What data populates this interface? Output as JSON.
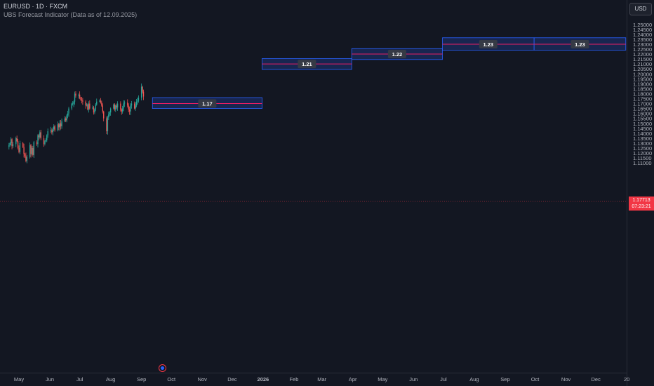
{
  "header": {
    "title": "EURUSD · 1D · FXCM",
    "indicator": "UBS Forecast Indicator (Data as of 12.09.2025)"
  },
  "currency_button": "USD",
  "last_price": {
    "value": "1.17713",
    "countdown": "07:23:21",
    "color": "#f23645"
  },
  "colors": {
    "background": "#131722",
    "up": "#26a69a",
    "down": "#ef5350",
    "box_fill": "#1e3a8a",
    "box_border": "#2962ff",
    "forecast_line": "#e91e63",
    "label_bg": "#363a45",
    "axis_text": "#b2b5be"
  },
  "chart_data": {
    "type": "candlestick",
    "symbol": "EURUSD",
    "timeframe": "1D",
    "y_ticks": [
      1.11,
      1.115,
      1.12,
      1.125,
      1.13,
      1.135,
      1.14,
      1.145,
      1.15,
      1.155,
      1.16,
      1.165,
      1.17,
      1.175,
      1.18,
      1.185,
      1.19,
      1.195,
      1.2,
      1.205,
      1.21,
      1.215,
      1.22,
      1.225,
      1.23,
      1.235,
      1.24,
      1.245,
      1.25
    ],
    "y_tick_labels": [
      "1.11000",
      "1.11500",
      "1.12000",
      "1.12500",
      "1.13000",
      "1.13500",
      "1.14000",
      "1.14500",
      "1.15000",
      "1.15500",
      "1.16000",
      "1.16500",
      "1.17000",
      "1.17500",
      "1.18000",
      "1.18500",
      "1.19000",
      "1.19500",
      "1.20000",
      "1.20500",
      "1.21000",
      "1.21500",
      "1.22000",
      "1.22500",
      "1.23000",
      "1.23500",
      "1.24000",
      "1.24500",
      "1.25000"
    ],
    "x_labels": [
      {
        "date": "2025-05-01",
        "label": "May"
      },
      {
        "date": "2025-06-01",
        "label": "Jun"
      },
      {
        "date": "2025-07-01",
        "label": "Jul"
      },
      {
        "date": "2025-08-01",
        "label": "Aug"
      },
      {
        "date": "2025-09-01",
        "label": "Sep"
      },
      {
        "date": "2025-10-01",
        "label": "Oct"
      },
      {
        "date": "2025-11-01",
        "label": "Nov"
      },
      {
        "date": "2025-12-01",
        "label": "Dec"
      },
      {
        "date": "2026-01-01",
        "label": "2026"
      },
      {
        "date": "2026-02-01",
        "label": "Feb"
      },
      {
        "date": "2026-03-01",
        "label": "Mar"
      },
      {
        "date": "2026-04-01",
        "label": "Apr"
      },
      {
        "date": "2026-05-01",
        "label": "May"
      },
      {
        "date": "2026-06-01",
        "label": "Jun"
      },
      {
        "date": "2026-07-01",
        "label": "Jul"
      },
      {
        "date": "2026-08-01",
        "label": "Aug"
      },
      {
        "date": "2026-09-01",
        "label": "Sep"
      },
      {
        "date": "2026-10-01",
        "label": "Oct"
      },
      {
        "date": "2026-11-01",
        "label": "Nov"
      },
      {
        "date": "2026-12-01",
        "label": "Dec"
      },
      {
        "date": "2027-01-01",
        "label": "20"
      }
    ],
    "first_candle": "2025-04-21",
    "last_price": 1.17713,
    "close_path": [
      1.128,
      1.13,
      1.134,
      1.127,
      1.129,
      1.135,
      1.132,
      1.125,
      1.121,
      1.13,
      1.126,
      1.119,
      1.117,
      1.112,
      1.116,
      1.128,
      1.119,
      1.125,
      1.118,
      1.131,
      1.129,
      1.138,
      1.136,
      1.141,
      1.135,
      1.129,
      1.132,
      1.133,
      1.138,
      1.142,
      1.143,
      1.141,
      1.144,
      1.147,
      1.143,
      1.149,
      1.146,
      1.15,
      1.147,
      1.152,
      1.155,
      1.153,
      1.158,
      1.16,
      1.165,
      1.17,
      1.17,
      1.172,
      1.18,
      1.178,
      1.179,
      1.176,
      1.174,
      1.173,
      1.172,
      1.168,
      1.169,
      1.164,
      1.17,
      1.165,
      1.166,
      1.161,
      1.164,
      1.169,
      1.172,
      1.173,
      1.171,
      1.168,
      1.162,
      1.155,
      1.142,
      1.156,
      1.159,
      1.161,
      1.165,
      1.169,
      1.164,
      1.168,
      1.166,
      1.17,
      1.164,
      1.162,
      1.165,
      1.17,
      1.171,
      1.168,
      1.164,
      1.162,
      1.168,
      1.17,
      1.165,
      1.168,
      1.172,
      1.173,
      1.176,
      1.187,
      1.182,
      1.1771
    ],
    "forecast_boxes": [
      {
        "label": "1.17",
        "value": 1.17,
        "from": "2025-09-12",
        "to": "2025-12-31",
        "high": 1.176,
        "low": 1.165
      },
      {
        "label": "1.21",
        "value": 1.21,
        "from": "2025-12-31",
        "to": "2026-03-31",
        "high": 1.2155,
        "low": 1.2045
      },
      {
        "label": "1.22",
        "value": 1.22,
        "from": "2026-03-31",
        "to": "2026-06-30",
        "high": 1.2255,
        "low": 1.2145
      },
      {
        "label": "1.23",
        "value": 1.23,
        "from": "2026-06-30",
        "to": "2026-09-30",
        "high": 1.2365,
        "low": 1.224
      },
      {
        "label": "1.23",
        "value": 1.23,
        "from": "2026-09-30",
        "to": "2026-12-31",
        "high": 1.2365,
        "low": 1.224
      }
    ]
  }
}
